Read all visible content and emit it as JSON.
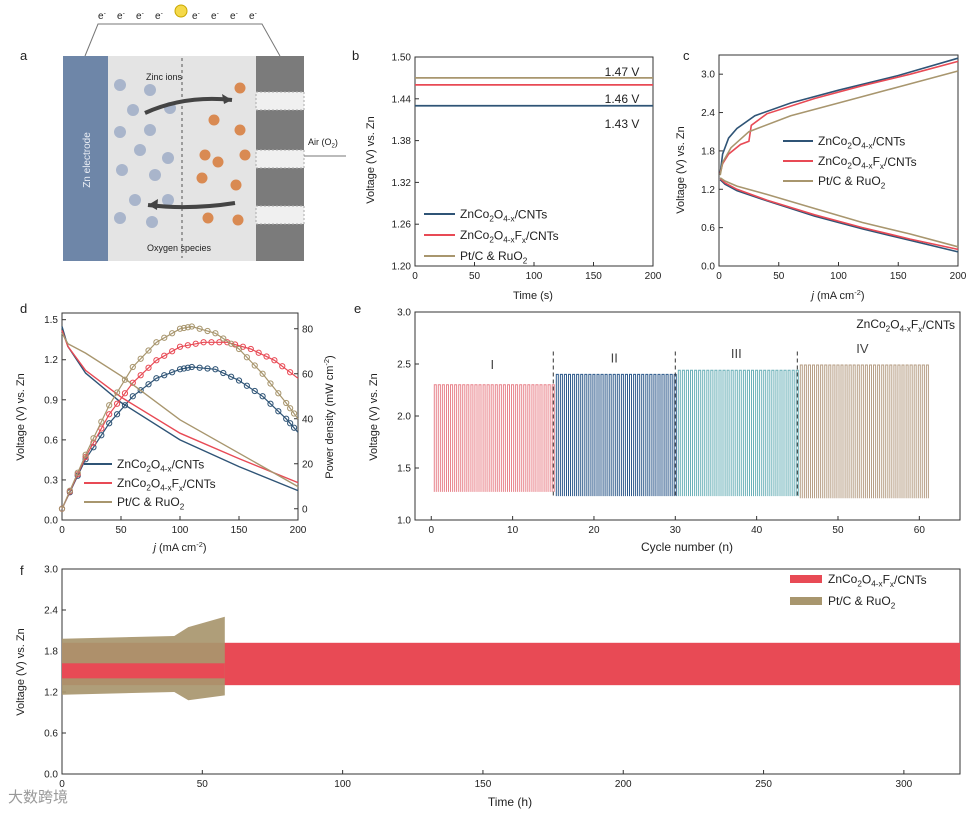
{
  "colors": {
    "dark": "#2f5476",
    "red": "#e84a55",
    "tan": "#a8966e",
    "navy": "#1f3f60",
    "blueWall": "#6e86a8",
    "orange": "#d98a52",
    "lightBlue": "#a9b5cb"
  },
  "panel_a": {
    "label": "a",
    "electrons": [
      "e",
      "e",
      "e",
      "e",
      "e",
      "e",
      "e",
      "e"
    ],
    "zinc_electrode": "Zn electrode",
    "zinc_ions": "Zinc ions",
    "oxygen_species": "Oxygen species",
    "air": "Air (O",
    "air_sub": "2",
    "air_close": ")"
  },
  "panel_labels": {
    "b": "b",
    "c": "c",
    "d": "d",
    "e": "e",
    "f": "f"
  },
  "legend": {
    "cnts": {
      "pre": "ZnCo",
      "s1": "2",
      "mid": "O",
      "s2": "4-x",
      "post": "/CNTs"
    },
    "fcnts": {
      "pre": "ZnCo",
      "s1": "2",
      "mid": "O",
      "s2": "4-x",
      "mid2": "F",
      "s3": "x",
      "post": "/CNTs"
    },
    "ptc": {
      "pre": "Pt/C & RuO",
      "s1": "2"
    }
  },
  "chart_data": [
    {
      "id": "b",
      "type": "line",
      "xlabel": "Time (s)",
      "ylabel": "Voltage (V) vs. Zn",
      "xlim": [
        0,
        200
      ],
      "ylim": [
        1.2,
        1.5
      ],
      "xticks": [
        "0",
        "50",
        "100",
        "150",
        "200"
      ],
      "yticks": [
        "1.20",
        "1.26",
        "1.32",
        "1.38",
        "1.44",
        "1.50"
      ],
      "series": [
        {
          "key": "cnts",
          "color": "dark",
          "value": 1.43
        },
        {
          "key": "fcnts",
          "color": "red",
          "value": 1.46
        },
        {
          "key": "ptc",
          "color": "tan",
          "value": 1.47
        }
      ],
      "annotations": [
        "1.47 V",
        "1.46 V",
        "1.43 V"
      ]
    },
    {
      "id": "c",
      "type": "line",
      "xlabel": "(mA cm",
      "xlabel_j": "j",
      "xlabel_sup": "-2",
      "xlabel_close": ")",
      "ylabel": "Voltage (V) vs. Zn",
      "xlim": [
        0,
        200
      ],
      "ylim": [
        0,
        3.3
      ],
      "xticks": [
        "0",
        "50",
        "100",
        "150",
        "200"
      ],
      "yticks": [
        "0.0",
        "0.6",
        "1.2",
        "1.8",
        "2.4",
        "3.0"
      ],
      "series": [
        {
          "key": "cnts",
          "color": "dark",
          "charge": [
            [
              1,
              1.45
            ],
            [
              3,
              1.75
            ],
            [
              8,
              2.0
            ],
            [
              15,
              2.15
            ],
            [
              30,
              2.35
            ],
            [
              60,
              2.55
            ],
            [
              100,
              2.75
            ],
            [
              150,
              2.98
            ],
            [
              200,
              3.25
            ]
          ],
          "discharge": [
            [
              1,
              1.35
            ],
            [
              5,
              1.28
            ],
            [
              15,
              1.18
            ],
            [
              40,
              1.02
            ],
            [
              80,
              0.78
            ],
            [
              120,
              0.58
            ],
            [
              160,
              0.4
            ],
            [
              200,
              0.22
            ]
          ]
        },
        {
          "key": "fcnts",
          "color": "red",
          "charge": [
            [
              1,
              1.45
            ],
            [
              3,
              1.6
            ],
            [
              8,
              1.75
            ],
            [
              18,
              1.9
            ],
            [
              25,
              1.95
            ],
            [
              27,
              2.2
            ],
            [
              40,
              2.38
            ],
            [
              80,
              2.62
            ],
            [
              120,
              2.82
            ],
            [
              160,
              3.0
            ],
            [
              200,
              3.2
            ]
          ],
          "discharge": [
            [
              1,
              1.37
            ],
            [
              5,
              1.3
            ],
            [
              15,
              1.2
            ],
            [
              40,
              1.03
            ],
            [
              80,
              0.8
            ],
            [
              120,
              0.6
            ],
            [
              160,
              0.42
            ],
            [
              200,
              0.26
            ]
          ]
        },
        {
          "key": "ptc",
          "color": "tan",
          "charge": [
            [
              1,
              1.42
            ],
            [
              3,
              1.62
            ],
            [
              10,
              1.85
            ],
            [
              25,
              2.1
            ],
            [
              60,
              2.35
            ],
            [
              100,
              2.55
            ],
            [
              150,
              2.8
            ],
            [
              200,
              3.05
            ]
          ],
          "discharge": [
            [
              1,
              1.38
            ],
            [
              5,
              1.33
            ],
            [
              15,
              1.25
            ],
            [
              40,
              1.12
            ],
            [
              80,
              0.9
            ],
            [
              120,
              0.68
            ],
            [
              160,
              0.5
            ],
            [
              200,
              0.3
            ]
          ]
        }
      ]
    },
    {
      "id": "d",
      "type": "line",
      "xlabel": "(mA cm",
      "xlabel_j": "j",
      "xlabel_sup": "-2",
      "xlabel_close": ")",
      "ylabel": "Voltage (V) vs. Zn",
      "ylabel2": "Power density (mW cm",
      "ylabel2_sup": "-2",
      "ylabel2_close": ")",
      "xlim": [
        0,
        200
      ],
      "ylim": [
        0,
        1.55
      ],
      "y2lim": [
        -5,
        87
      ],
      "xticks": [
        "0",
        "50",
        "100",
        "150",
        "200"
      ],
      "yticks": [
        "0.0",
        "0.3",
        "0.6",
        "0.9",
        "1.2",
        "1.5"
      ],
      "y2ticks": [
        "0",
        "20",
        "40",
        "60",
        "80"
      ],
      "series": [
        {
          "key": "cnts",
          "color": "dark",
          "voltage": [
            [
              0,
              1.45
            ],
            [
              5,
              1.3
            ],
            [
              20,
              1.1
            ],
            [
              50,
              0.88
            ],
            [
              100,
              0.6
            ],
            [
              150,
              0.4
            ],
            [
              200,
              0.22
            ]
          ],
          "power": [
            [
              0,
              0
            ],
            [
              20,
              22
            ],
            [
              40,
              38
            ],
            [
              60,
              50
            ],
            [
              80,
              58
            ],
            [
              100,
              62
            ],
            [
              110,
              63
            ],
            [
              130,
              62
            ],
            [
              150,
              57
            ],
            [
              170,
              50
            ],
            [
              190,
              40
            ],
            [
              200,
              34
            ]
          ]
        },
        {
          "key": "fcnts",
          "color": "red",
          "voltage": [
            [
              0,
              1.42
            ],
            [
              5,
              1.3
            ],
            [
              20,
              1.12
            ],
            [
              50,
              0.92
            ],
            [
              100,
              0.65
            ],
            [
              150,
              0.46
            ],
            [
              200,
              0.28
            ]
          ],
          "power": [
            [
              0,
              0
            ],
            [
              20,
              23
            ],
            [
              40,
              42
            ],
            [
              60,
              56
            ],
            [
              80,
              66
            ],
            [
              100,
              72
            ],
            [
              120,
              74
            ],
            [
              140,
              74
            ],
            [
              160,
              71
            ],
            [
              180,
              66
            ],
            [
              200,
              58
            ]
          ]
        },
        {
          "key": "ptc",
          "color": "tan",
          "voltage": [
            [
              0,
              1.4
            ],
            [
              5,
              1.32
            ],
            [
              20,
              1.25
            ],
            [
              50,
              1.08
            ],
            [
              100,
              0.75
            ],
            [
              150,
              0.5
            ],
            [
              200,
              0.25
            ]
          ],
          "power": [
            [
              0,
              0
            ],
            [
              20,
              24
            ],
            [
              40,
              46
            ],
            [
              60,
              63
            ],
            [
              80,
              74
            ],
            [
              100,
              80
            ],
            [
              110,
              81
            ],
            [
              130,
              78
            ],
            [
              150,
              71
            ],
            [
              170,
              60
            ],
            [
              190,
              47
            ],
            [
              200,
              40
            ]
          ]
        }
      ]
    },
    {
      "id": "e",
      "type": "line",
      "title": {
        "pre": "ZnCo",
        "s1": "2",
        "mid": "O",
        "s2": "4-x",
        "mid2": "F",
        "s3": "x",
        "post": "/CNTs"
      },
      "xlabel": "Cycle number (n)",
      "ylabel": "Voltage (V)  vs. Zn",
      "xlim": [
        -2,
        65
      ],
      "ylim": [
        1.0,
        3.0
      ],
      "xticks": [
        "0",
        "10",
        "20",
        "30",
        "40",
        "50",
        "60"
      ],
      "yticks": [
        "1.0",
        "1.5",
        "2.0",
        "2.5",
        "3.0"
      ],
      "regions": [
        {
          "label": "I",
          "from": 0,
          "to": 15,
          "high": 2.3,
          "low": 1.27,
          "color": "#e8848c"
        },
        {
          "label": "II",
          "from": 15,
          "to": 30,
          "high": 2.4,
          "low": 1.23,
          "color": "#2f5b8c"
        },
        {
          "label": "III",
          "from": 30,
          "to": 45,
          "high": 2.44,
          "low": 1.23,
          "color": "#6bb0b8"
        },
        {
          "label": "IV",
          "from": 45,
          "to": 61,
          "high": 2.49,
          "low": 1.21,
          "color": "#b79f86"
        }
      ]
    },
    {
      "id": "f",
      "type": "area",
      "xlabel": "Time (h)",
      "ylabel": "Voltage (V) vs. Zn",
      "xlim": [
        0,
        320
      ],
      "ylim": [
        0,
        3.0
      ],
      "xticks": [
        "0",
        "50",
        "100",
        "150",
        "200",
        "250",
        "300"
      ],
      "yticks": [
        "0.0",
        "0.6",
        "1.2",
        "1.8",
        "2.4",
        "3.0"
      ],
      "series": [
        {
          "key": "fcnts",
          "color": "red",
          "from": 0,
          "to": 320,
          "high": 1.92,
          "low": 1.3
        },
        {
          "key": "ptc",
          "color": "tan",
          "from": 0,
          "to": 58,
          "high": [
            [
              0,
              1.98
            ],
            [
              40,
              2.02
            ],
            [
              45,
              2.15
            ],
            [
              58,
              2.3
            ]
          ],
          "low": [
            [
              0,
              1.16
            ],
            [
              40,
              1.2
            ],
            [
              45,
              1.08
            ],
            [
              58,
              1.15
            ]
          ]
        }
      ]
    }
  ],
  "watermark": "大数跨境"
}
